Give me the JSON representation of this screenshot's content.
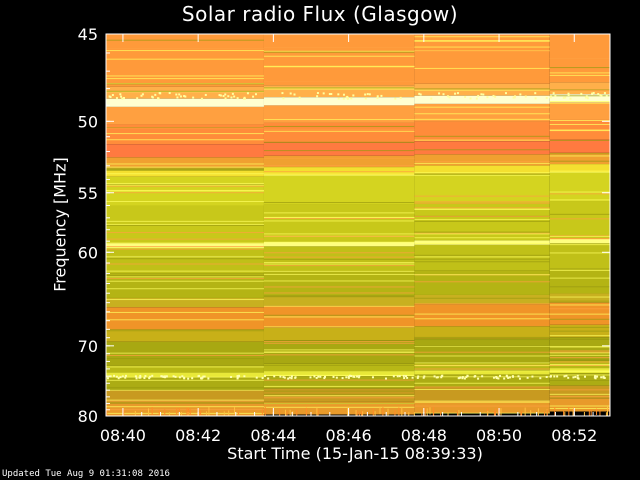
{
  "chart_data": {
    "type": "heatmap",
    "title": "Solar radio Flux (Glasgow)",
    "xlabel": "Start Time (15-Jan-15 08:39:33)",
    "ylabel": "Frequency [MHz]",
    "x_tick_labels": [
      "08:40",
      "08:42",
      "08:44",
      "08:46",
      "08:48",
      "08:50",
      "08:52"
    ],
    "x_ticks_minutes": [
      0.45,
      2.45,
      4.45,
      6.45,
      8.45,
      10.45,
      12.45
    ],
    "x_range_minutes": [
      0,
      13.4
    ],
    "y_tick_labels": [
      "45",
      "50",
      "55",
      "60",
      "70",
      "80"
    ],
    "y_ticks_mhz": [
      45,
      50,
      55,
      60,
      70,
      80
    ],
    "y_range_mhz": [
      45,
      80
    ],
    "y_scale": "reciprocal",
    "segment_starts_minutes": [
      0,
      4.2,
      8.2,
      11.8
    ],
    "colors": {
      "background": "#000000",
      "low": "#9a9a10",
      "mid": "#d8d828",
      "high": "#ff9a1e",
      "peak": "#ff6e50",
      "bright_line": "#ffffc0"
    },
    "bands": [
      {
        "f1": 45.0,
        "f2": 47.9,
        "color": "#ff9a3a"
      },
      {
        "f1": 47.9,
        "f2": 48.6,
        "color": "#ffb04a"
      },
      {
        "f1": 48.6,
        "f2": 49.1,
        "color": "#ffffd0"
      },
      {
        "f1": 49.1,
        "f2": 50.2,
        "color": "#ffa040"
      },
      {
        "f1": 50.2,
        "f2": 51.5,
        "color": "#ff8c3a"
      },
      {
        "f1": 51.5,
        "f2": 52.4,
        "color": "#ff7a40"
      },
      {
        "f1": 52.4,
        "f2": 53.2,
        "color": "#f0a030"
      },
      {
        "f1": 53.2,
        "f2": 53.8,
        "color": "#f4e030"
      },
      {
        "f1": 53.8,
        "f2": 56.0,
        "color": "#d4d420"
      },
      {
        "f1": 56.0,
        "f2": 59.2,
        "color": "#c8c81a"
      },
      {
        "f1": 59.2,
        "f2": 59.6,
        "color": "#ffff80"
      },
      {
        "f1": 59.6,
        "f2": 62.0,
        "color": "#c0c018"
      },
      {
        "f1": 62.0,
        "f2": 64.5,
        "color": "#b4b414"
      },
      {
        "f1": 64.5,
        "f2": 65.5,
        "color": "#c8b020"
      },
      {
        "f1": 65.5,
        "f2": 68.0,
        "color": "#f09428"
      },
      {
        "f1": 68.0,
        "f2": 69.5,
        "color": "#c8b018"
      },
      {
        "f1": 69.5,
        "f2": 72.5,
        "color": "#a8a812"
      },
      {
        "f1": 72.5,
        "f2": 73.5,
        "color": "#b8b816"
      },
      {
        "f1": 73.5,
        "f2": 74.2,
        "color": "#e8e838"
      },
      {
        "f1": 74.2,
        "f2": 76.0,
        "color": "#acac14"
      },
      {
        "f1": 76.0,
        "f2": 78.0,
        "color": "#c89a20"
      },
      {
        "f1": 78.0,
        "f2": 80.0,
        "color": "#e89a2a"
      }
    ]
  },
  "footer": "Updated Tue Aug  9 01:31:08 2016"
}
